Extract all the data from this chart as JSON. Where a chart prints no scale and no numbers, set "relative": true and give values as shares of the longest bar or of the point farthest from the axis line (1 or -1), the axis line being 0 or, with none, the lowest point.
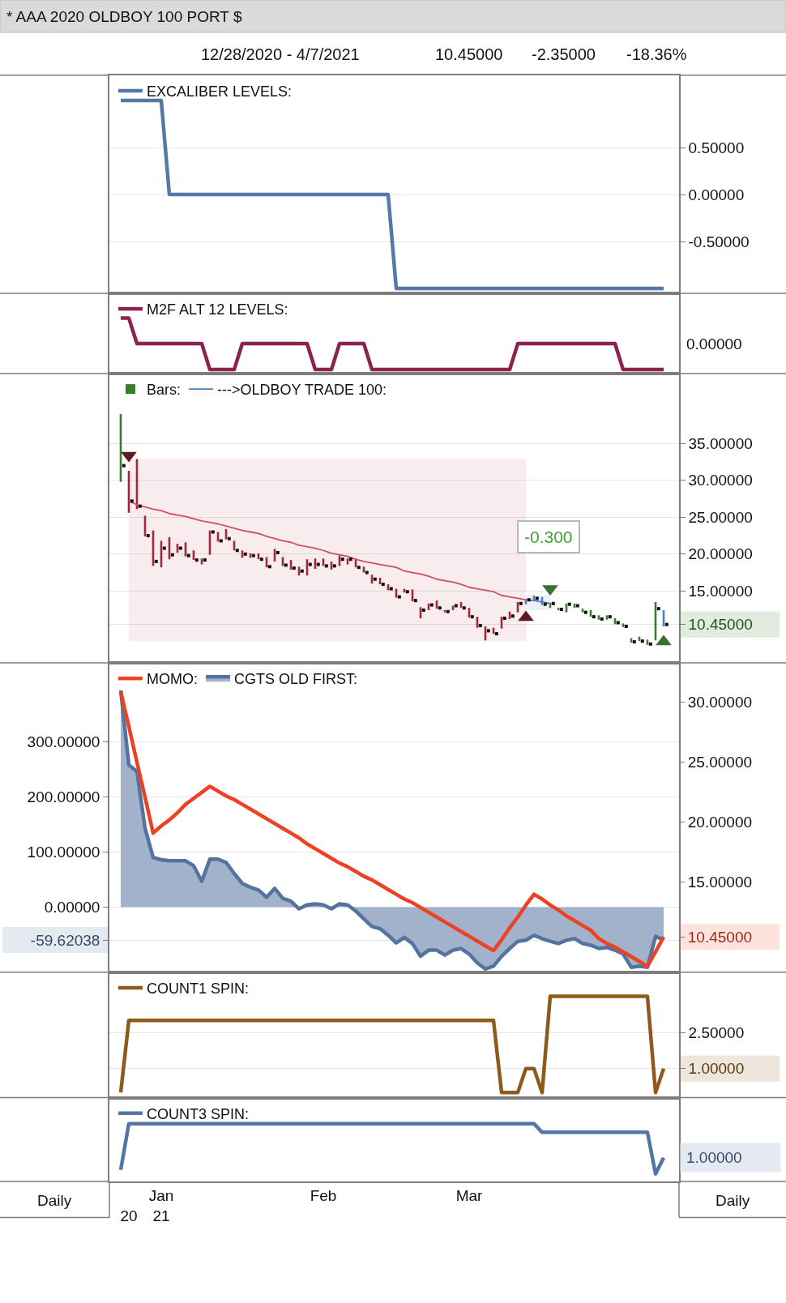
{
  "chart_data": [
    {
      "type": "line",
      "title": "* AAA 2020 OLDBOY 100 PORT $",
      "subtitle": "12/28/2020 - 4/7/2021",
      "annotations": [
        "10.45000",
        "-2.35000",
        "-18.36%"
      ],
      "categories": [
        null,
        null,
        null,
        null,
        null,
        null,
        null,
        null,
        null,
        null,
        null,
        null,
        null,
        null,
        null,
        null,
        null,
        null,
        null,
        null,
        null,
        null,
        null,
        null,
        null,
        null,
        null,
        null,
        null,
        null,
        null,
        null,
        null,
        null,
        null,
        null,
        null,
        null,
        null,
        null,
        null,
        null,
        null,
        null,
        null,
        null,
        null,
        null,
        null,
        null,
        null,
        null,
        null,
        null,
        null,
        null,
        null,
        null,
        null,
        null,
        null,
        null,
        null,
        null,
        null,
        null,
        null,
        null
      ],
      "ylim": [
        -1.05,
        1.27
      ],
      "yticks": [
        {
          "value": 0.5,
          "label": "0.50000"
        },
        {
          "value": 0,
          "label": "0.00000"
        },
        {
          "value": -0.5,
          "label": "-0.50000"
        }
      ],
      "tick_labels": "y",
      "grid": "y",
      "legend": "top left",
      "series": [
        {
          "name": "EXCALIBER LEVELS:",
          "color": "#5478a8",
          "values": [
            1,
            1,
            1,
            1,
            1,
            1,
            0,
            0,
            0,
            0,
            0,
            0,
            0,
            0,
            0,
            0,
            0,
            0,
            0,
            0,
            0,
            0,
            0,
            0,
            0,
            0,
            0,
            0,
            0,
            0,
            0,
            0,
            0,
            0,
            -1,
            -1,
            -1,
            -1,
            -1,
            -1,
            -1,
            -1,
            -1,
            -1,
            -1,
            -1,
            -1,
            -1,
            -1,
            -1,
            -1,
            -1,
            -1,
            -1,
            -1,
            -1,
            -1,
            -1,
            -1,
            -1,
            -1,
            -1,
            -1,
            -1,
            -1,
            -1,
            -1,
            -1
          ]
        }
      ]
    },
    {
      "type": "line",
      "relative": true,
      "annotations": [
        "0.00000"
      ],
      "categories": [
        null,
        null,
        null,
        null,
        null,
        null,
        null,
        null,
        null,
        null,
        null,
        null,
        null,
        null,
        null,
        null,
        null,
        null,
        null,
        null,
        null,
        null,
        null,
        null,
        null,
        null,
        null,
        null,
        null,
        null,
        null,
        null,
        null,
        null,
        null,
        null,
        null,
        null,
        null,
        null,
        null,
        null,
        null,
        null,
        null,
        null,
        null,
        null,
        null,
        null,
        null,
        null,
        null,
        null,
        null,
        null,
        null,
        null,
        null,
        null,
        null,
        null,
        null,
        null,
        null,
        null,
        null,
        null
      ],
      "tick_labels": false,
      "legend": "top left",
      "series": [
        {
          "name": "M2F ALT 12 LEVELS:",
          "color": "#8c2250",
          "values": [
            1,
            1,
            0.54,
            0.54,
            0.54,
            0.54,
            0.54,
            0.54,
            0.54,
            0.54,
            0.54,
            0.07,
            0.07,
            0.07,
            0.07,
            0.54,
            0.54,
            0.54,
            0.54,
            0.54,
            0.54,
            0.54,
            0.54,
            0.54,
            0.07,
            0.07,
            0.07,
            0.54,
            0.54,
            0.54,
            0.54,
            0.07,
            0.07,
            0.07,
            0.07,
            0.07,
            0.07,
            0.07,
            0.07,
            0.07,
            0.07,
            0.07,
            0.07,
            0.07,
            0.07,
            0.07,
            0.07,
            0.07,
            0.07,
            0.54,
            0.54,
            0.54,
            0.54,
            0.54,
            0.54,
            0.54,
            0.54,
            0.54,
            0.54,
            0.54,
            0.54,
            0.54,
            0.07,
            0.07,
            0.07,
            0.07,
            0.07,
            0.07
          ]
        }
      ]
    },
    {
      "type": "bar",
      "annotations": [
        "-0.300"
      ],
      "categories": [
        null,
        null,
        null,
        null,
        null,
        null,
        null,
        null,
        null,
        null,
        null,
        null,
        null,
        null,
        null,
        null,
        null,
        null,
        null,
        null,
        null,
        null,
        null,
        null,
        null,
        null,
        null,
        null,
        null,
        null,
        null,
        null,
        null,
        null,
        null,
        null,
        null,
        null,
        null,
        null,
        null,
        null,
        null,
        null,
        null,
        null,
        null,
        null,
        null,
        null,
        null,
        null,
        null,
        null,
        null,
        null,
        null,
        null,
        null,
        null,
        null,
        null,
        null,
        null,
        null,
        null,
        null,
        null
      ],
      "ylim": [
        5.25,
        44.5
      ],
      "yticks": [
        {
          "value": 35,
          "label": "35.00000"
        },
        {
          "value": 30,
          "label": "30.00000"
        },
        {
          "value": 25,
          "label": "25.00000"
        },
        {
          "value": 20,
          "label": "20.00000"
        },
        {
          "value": 15,
          "label": "15.00000"
        },
        {
          "value": 10.45,
          "label": "10.45000"
        }
      ],
      "tick_labels": "y",
      "grid": "y",
      "legend": "top left",
      "series": [
        {
          "type": "bar",
          "name": "Bars:",
          "color": "#3a7d2c",
          "colors": [
            "#3a7d2c",
            "#9e2436",
            "#9e2436",
            "#9e2436",
            "#9e2436",
            "#9e2436",
            "#9e2436",
            "#9e2436",
            "#9e2436",
            "#9e2436",
            "#9e2436",
            "#9e2436",
            "#9e2436",
            "#9e2436",
            "#9e2436",
            "#9e2436",
            "#9e2436",
            "#9e2436",
            "#9e2436",
            "#9e2436",
            "#9e2436",
            "#9e2436",
            "#9e2436",
            "#9e2436",
            "#9e2436",
            "#9e2436",
            "#9e2436",
            "#9e2436",
            "#9e2436",
            "#9e2436",
            "#9e2436",
            "#9e2436",
            "#9e2436",
            "#9e2436",
            "#9e2436",
            "#9e2436",
            "#9e2436",
            "#9e2436",
            "#9e2436",
            "#9e2436",
            "#9e2436",
            "#9e2436",
            "#9e2436",
            "#9e2436",
            "#9e2436",
            "#9e2436",
            "#9e2436",
            "#9e2436",
            "#9e2436",
            "#9e2436",
            "#4f81bd",
            "#4f81bd",
            "#4f81bd",
            "#3a7d2c",
            "#3a7d2c",
            "#3a7d2c",
            "#3a7d2c",
            "#3a7d2c",
            "#3a7d2c",
            "#3a7d2c",
            "#3a7d2c",
            "#3a7d2c",
            "#3a7d2c",
            "#3a7d2c",
            "#3a7d2c",
            "#3a7d2c",
            "#3a7d2c",
            "#4f81bd"
          ],
          "base": [
            29.8,
            25.6,
            26.1,
            22.4,
            18.4,
            18.2,
            19.3,
            20.2,
            19.7,
            19.2,
            18.6,
            19.9,
            21.7,
            22.0,
            20.5,
            19.5,
            19.5,
            19.3,
            18.2,
            19.0,
            18.4,
            17.9,
            17.1,
            17.1,
            18.0,
            18.4,
            17.9,
            18.4,
            18.6,
            18.2,
            17.5,
            16.0,
            15.9,
            15.1,
            14.1,
            14.8,
            13.6,
            11.3,
            12.4,
            12.6,
            12.1,
            12.4,
            12.7,
            11.4,
            10.0,
            8.3,
            9.2,
            9.9,
            11.2,
            12.1,
            13.2,
            13.6,
            13.1,
            12.7,
            12.4,
            12.1,
            12.7,
            12.1,
            11.5,
            11.1,
            11.1,
            10.5,
            10.1,
            8.0,
            8.2,
            7.7,
            8.3,
            10.2
          ],
          "values": [
            9.2,
            5.7,
            6.8,
            2.8,
            4.8,
            3.6,
            3.0,
            1.2,
            1.9,
            1.3,
            0.8,
            3.3,
            1.3,
            1.4,
            1.3,
            1.0,
            0.6,
            0.8,
            1.4,
            1.7,
            1.2,
            1.3,
            1.2,
            2.2,
            1.4,
            1.0,
            1.1,
            1.4,
            0.8,
            1.2,
            0.8,
            1.2,
            0.9,
            0.8,
            1.2,
            0.5,
            1.6,
            1.5,
            0.9,
            1.1,
            0.3,
            0.6,
            0.8,
            1.3,
            1.5,
            1.9,
            0.8,
            1.6,
            1.0,
            1.4,
            0.7,
            0.8,
            1.1,
            0.7,
            0.3,
            1.2,
            0.6,
            0.5,
            0.9,
            0.6,
            0.6,
            0.8,
            0.5,
            0.6,
            0.6,
            0.7,
            5.2,
            2.2
          ]
        },
        {
          "type": "scatter",
          "marker": "square",
          "color": "#111111",
          "values": [
            32.0,
            27.2,
            26.5,
            22.5,
            19.0,
            20.8,
            19.9,
            20.8,
            19.8,
            19.2,
            19.2,
            23.0,
            21.8,
            22.1,
            20.5,
            20.0,
            19.8,
            19.3,
            18.3,
            20.2,
            18.5,
            18.1,
            17.7,
            18.6,
            18.6,
            18.4,
            18.4,
            19.3,
            19.3,
            18.2,
            17.5,
            16.6,
            15.9,
            15.3,
            14.2,
            14.9,
            13.7,
            12.4,
            13.1,
            12.7,
            12.2,
            13.0,
            12.7,
            11.5,
            10.3,
            9.6,
            9.2,
            11.3,
            11.6,
            13.3,
            13.8,
            14.0,
            13.2,
            13.3,
            12.5,
            13.2,
            13.0,
            12.1,
            11.5,
            11.2,
            11.5,
            10.7,
            10.2,
            8.1,
            8.2,
            7.8,
            12.6,
            10.45
          ]
        },
        {
          "type": "line",
          "color": "#cc5262",
          "values": [
            null,
            27.2,
            26.7,
            26.4,
            26.1,
            25.9,
            25.5,
            25.3,
            25.1,
            24.8,
            24.5,
            24.3,
            24.1,
            23.8,
            23.5,
            23.2,
            23.0,
            22.8,
            22.4,
            22.1,
            21.8,
            21.6,
            21.2,
            21.0,
            20.8,
            20.5,
            20.1,
            19.9,
            19.7,
            19.3,
            19.0,
            18.8,
            18.6,
            18.4,
            18.2,
            17.7,
            17.5,
            17.3,
            17.0,
            16.6,
            16.4,
            16.2,
            15.9,
            15.5,
            15.3,
            15.1,
            14.9,
            14.4,
            14.2,
            14.0,
            13.8,
            null,
            null,
            null,
            null,
            null,
            null,
            null,
            null,
            null,
            null,
            null,
            null,
            null,
            null,
            null,
            null,
            null
          ],
          "lower": [
            null,
            8.2,
            8.2,
            8.2,
            8.2,
            8.2,
            8.2,
            8.2,
            8.2,
            8.2,
            8.2,
            8.2,
            8.2,
            8.2,
            8.2,
            8.2,
            8.2,
            8.2,
            8.2,
            8.2,
            8.2,
            8.2,
            8.2,
            8.2,
            8.2,
            8.2,
            8.2,
            8.2,
            8.2,
            8.2,
            8.2,
            8.2,
            8.2,
            8.2,
            8.2,
            8.2,
            8.2,
            8.2,
            8.2,
            8.2,
            8.2,
            8.2,
            8.2,
            8.2,
            8.2,
            8.2,
            8.2,
            8.2,
            8.2,
            8.2,
            8.2,
            null,
            null,
            null,
            null,
            null,
            null,
            null,
            null,
            null,
            null,
            null,
            null,
            null,
            null,
            null,
            null,
            null
          ],
          "upper": [
            null,
            32.9,
            32.9,
            32.9,
            32.9,
            32.9,
            32.9,
            32.9,
            32.9,
            32.9,
            32.9,
            32.9,
            32.9,
            32.9,
            32.9,
            32.9,
            32.9,
            32.9,
            32.9,
            32.9,
            32.9,
            32.9,
            32.9,
            32.9,
            32.9,
            32.9,
            32.9,
            32.9,
            32.9,
            32.9,
            32.9,
            32.9,
            32.9,
            32.9,
            32.9,
            32.9,
            32.9,
            32.9,
            32.9,
            32.9,
            32.9,
            32.9,
            32.9,
            32.9,
            32.9,
            32.9,
            32.9,
            32.9,
            32.9,
            32.9,
            32.9,
            null,
            null,
            null,
            null,
            null,
            null,
            null,
            null,
            null,
            null,
            null,
            null,
            null,
            null,
            null,
            null,
            null
          ]
        },
        {
          "type": "line",
          "name": "--->OLDBOY TRADE 100:",
          "color": "#4f81bd",
          "values": [
            null,
            null,
            null,
            null,
            null,
            null,
            null,
            null,
            null,
            null,
            null,
            null,
            null,
            null,
            null,
            null,
            null,
            null,
            null,
            null,
            null,
            null,
            null,
            null,
            null,
            null,
            null,
            null,
            null,
            null,
            null,
            null,
            null,
            null,
            null,
            null,
            null,
            null,
            null,
            null,
            null,
            null,
            null,
            null,
            null,
            null,
            null,
            null,
            null,
            null,
            13.8,
            13.7,
            13.5,
            13.3,
            null,
            null,
            null,
            null,
            null,
            null,
            null,
            null,
            null,
            null,
            null,
            null,
            null,
            null
          ],
          "lower": [
            null,
            null,
            null,
            null,
            null,
            null,
            null,
            null,
            null,
            null,
            null,
            null,
            null,
            null,
            null,
            null,
            null,
            null,
            null,
            null,
            null,
            null,
            null,
            null,
            null,
            null,
            null,
            null,
            null,
            null,
            null,
            null,
            null,
            null,
            null,
            null,
            null,
            null,
            null,
            null,
            null,
            null,
            null,
            null,
            null,
            null,
            null,
            null,
            null,
            null,
            12.4,
            12.4,
            12.4,
            12.4,
            null,
            null,
            null,
            null,
            null,
            null,
            null,
            null,
            null,
            null,
            null,
            null,
            null,
            null
          ],
          "upper": [
            null,
            null,
            null,
            null,
            null,
            null,
            null,
            null,
            null,
            null,
            null,
            null,
            null,
            null,
            null,
            null,
            null,
            null,
            null,
            null,
            null,
            null,
            null,
            null,
            null,
            null,
            null,
            null,
            null,
            null,
            null,
            null,
            null,
            null,
            null,
            null,
            null,
            null,
            null,
            null,
            null,
            null,
            null,
            null,
            null,
            null,
            null,
            null,
            null,
            null,
            14.4,
            14.4,
            14.4,
            14.4,
            null,
            null,
            null,
            null,
            null,
            null,
            null,
            null,
            null,
            null,
            null,
            null,
            null,
            null
          ]
        },
        {
          "type": "scatter",
          "marker": "triangle",
          "color": "#5c1b24",
          "values": [
            null,
            33.4,
            null,
            null,
            null,
            null,
            null,
            null,
            null,
            null,
            null,
            null,
            null,
            null,
            null,
            null,
            null,
            null,
            null,
            null,
            null,
            null,
            null,
            null,
            null,
            null,
            null,
            null,
            null,
            null,
            null,
            null,
            null,
            null,
            null,
            null,
            null,
            null,
            null,
            null,
            null,
            null,
            null,
            null,
            null,
            null,
            null,
            null,
            null,
            null,
            11.4,
            null,
            null,
            null,
            null,
            null,
            null,
            null,
            null,
            null,
            null,
            null,
            null,
            null,
            null,
            null,
            null,
            null
          ]
        },
        {
          "type": "scatter",
          "marker": "triangle",
          "color": "#3c6e3a",
          "values": [
            null,
            null,
            null,
            null,
            null,
            null,
            null,
            null,
            null,
            null,
            null,
            null,
            null,
            null,
            null,
            null,
            null,
            null,
            null,
            null,
            null,
            null,
            null,
            null,
            null,
            null,
            null,
            null,
            null,
            null,
            null,
            null,
            null,
            null,
            null,
            null,
            null,
            null,
            null,
            null,
            null,
            null,
            null,
            null,
            null,
            null,
            null,
            null,
            null,
            null,
            null,
            null,
            null,
            15.3,
            null,
            null,
            null,
            null,
            null,
            null,
            null,
            null,
            null,
            null,
            null,
            null,
            null,
            8.1
          ]
        }
      ]
    },
    {
      "type": "line",
      "categories": [
        null,
        null,
        null,
        null,
        null,
        null,
        null,
        null,
        null,
        null,
        null,
        null,
        null,
        null,
        null,
        null,
        null,
        null,
        null,
        null,
        null,
        null,
        null,
        null,
        null,
        null,
        null,
        null,
        null,
        null,
        null,
        null,
        null,
        null,
        null,
        null,
        null,
        null,
        null,
        null,
        null,
        null,
        null,
        null,
        null,
        null,
        null,
        null,
        null,
        null,
        null,
        null,
        null,
        null,
        null,
        null,
        null,
        null,
        null,
        null,
        null,
        null,
        null,
        null,
        null,
        null,
        null,
        null
      ],
      "ylim": [
        -118,
        443
      ],
      "yticks": [
        {
          "value": 300,
          "label": "300.00000"
        },
        {
          "value": 200,
          "label": "200.00000"
        },
        {
          "value": 100,
          "label": "100.00000"
        },
        {
          "value": 0,
          "label": "0.00000"
        },
        {
          "value": -59.62038,
          "label": "-59.62038"
        }
      ],
      "y2lim": [
        7.5,
        33.3
      ],
      "y2ticks": [
        {
          "value": 30,
          "label": "30.00000"
        },
        {
          "value": 25,
          "label": "25.00000"
        },
        {
          "value": 20,
          "label": "20.00000"
        },
        {
          "value": 15,
          "label": "15.00000"
        },
        {
          "value": 10.45,
          "label": "10.45000"
        }
      ],
      "tick_labels": "y",
      "grid": "y",
      "legend": "top left",
      "series": [
        {
          "name": "MOMO:",
          "color": "#ec4223",
          "axis": "y2",
          "values": [
            30.9,
            28.0,
            25.0,
            22.1,
            19.1,
            19.7,
            20.2,
            20.8,
            21.5,
            22.0,
            22.5,
            23.0,
            22.6,
            22.2,
            21.9,
            21.5,
            21.1,
            20.7,
            20.3,
            19.9,
            19.5,
            19.1,
            18.7,
            18.2,
            17.8,
            17.4,
            17.0,
            16.6,
            16.3,
            15.9,
            15.5,
            15.2,
            14.8,
            14.4,
            14.0,
            13.6,
            13.3,
            12.9,
            12.5,
            12.1,
            11.7,
            11.3,
            10.9,
            10.5,
            10.1,
            9.7,
            9.3,
            10.2,
            11.2,
            12.1,
            13.1,
            14.0,
            13.6,
            13.1,
            12.7,
            12.2,
            11.8,
            11.4,
            11.0,
            10.3,
            9.9,
            9.6,
            9.2,
            8.8,
            8.4,
            8.0,
            9.2,
            10.45
          ]
        },
        {
          "type": "area",
          "name": "CGTS OLD FIRST:",
          "color": "#54739f",
          "values": [
            393,
            258,
            246,
            143,
            90,
            86,
            84,
            84,
            84,
            75,
            47,
            87,
            87,
            81,
            61,
            43,
            36,
            31,
            18,
            34,
            16,
            11,
            -3,
            4,
            6,
            4,
            -3,
            6,
            4,
            -7,
            -21,
            -35,
            -39,
            -51,
            -65,
            -55,
            -66,
            -89,
            -78,
            -78,
            -87,
            -78,
            -75,
            -85,
            -101,
            -112,
            -107,
            -89,
            -75,
            -62,
            -60,
            -51,
            -57,
            -62,
            -66,
            -60,
            -57,
            -66,
            -69,
            -75,
            -73,
            -78,
            -85,
            -109,
            -107,
            -109,
            -53,
            -59.62038
          ]
        }
      ]
    },
    {
      "type": "line",
      "categories": [
        null,
        null,
        null,
        null,
        null,
        null,
        null,
        null,
        null,
        null,
        null,
        null,
        null,
        null,
        null,
        null,
        null,
        null,
        null,
        null,
        null,
        null,
        null,
        null,
        null,
        null,
        null,
        null,
        null,
        null,
        null,
        null,
        null,
        null,
        null,
        null,
        null,
        null,
        null,
        null,
        null,
        null,
        null,
        null,
        null,
        null,
        null,
        null,
        null,
        null,
        null,
        null,
        null,
        null,
        null,
        null,
        null,
        null,
        null,
        null,
        null,
        null,
        null,
        null,
        null,
        null,
        null,
        null
      ],
      "ylim": [
        -0.21,
        5.0
      ],
      "yticks": [
        {
          "value": 2.5,
          "label": "2.50000"
        },
        {
          "value": 1,
          "label": "1.00000"
        }
      ],
      "tick_labels": "y",
      "grid": "y",
      "legend": "top left",
      "series": [
        {
          "name": "COUNT1 SPIN:",
          "color": "#8e5a1c",
          "values": [
            0,
            3,
            3,
            3,
            3,
            3,
            3,
            3,
            3,
            3,
            3,
            3,
            3,
            3,
            3,
            3,
            3,
            3,
            3,
            3,
            3,
            3,
            3,
            3,
            3,
            3,
            3,
            3,
            3,
            3,
            3,
            3,
            3,
            3,
            3,
            3,
            3,
            3,
            3,
            3,
            3,
            3,
            3,
            3,
            3,
            3,
            3,
            0,
            0,
            0,
            1,
            1,
            0,
            4,
            4,
            4,
            4,
            4,
            4,
            4,
            4,
            4,
            4,
            4,
            4,
            4,
            0,
            1
          ]
        }
      ]
    },
    {
      "type": "line",
      "relative": true,
      "annotations": [
        "1.00000",
        "Daily",
        "Daily"
      ],
      "categories": [
        null,
        "\n20",
        null,
        null,
        null,
        "Jan\n21",
        null,
        null,
        null,
        null,
        null,
        null,
        null,
        null,
        null,
        null,
        null,
        null,
        null,
        null,
        null,
        null,
        null,
        null,
        null,
        "Feb",
        null,
        null,
        null,
        null,
        null,
        null,
        null,
        null,
        null,
        null,
        null,
        null,
        null,
        null,
        null,
        null,
        null,
        "Mar",
        null,
        null,
        null,
        null,
        null,
        null,
        null,
        null,
        null,
        null,
        null,
        null,
        null,
        null,
        null,
        null,
        null,
        null,
        null,
        null,
        null,
        null,
        null,
        null
      ],
      "tick_labels": "x",
      "legend": "top left",
      "series": [
        {
          "name": "COUNT3 SPIN:",
          "color": "#5376a6",
          "values": [
            0.2,
            1,
            1,
            1,
            1,
            1,
            1,
            1,
            1,
            1,
            1,
            1,
            1,
            1,
            1,
            1,
            1,
            1,
            1,
            1,
            1,
            1,
            1,
            1,
            1,
            1,
            1,
            1,
            1,
            1,
            1,
            1,
            1,
            1,
            1,
            1,
            1,
            1,
            1,
            1,
            1,
            1,
            1,
            1,
            1,
            1,
            1,
            1,
            1,
            1,
            1,
            1,
            0.85,
            0.85,
            0.85,
            0.85,
            0.85,
            0.85,
            0.85,
            0.85,
            0.85,
            0.85,
            0.85,
            0.85,
            0.85,
            0.85,
            0.13,
            0.41
          ]
        }
      ]
    }
  ]
}
